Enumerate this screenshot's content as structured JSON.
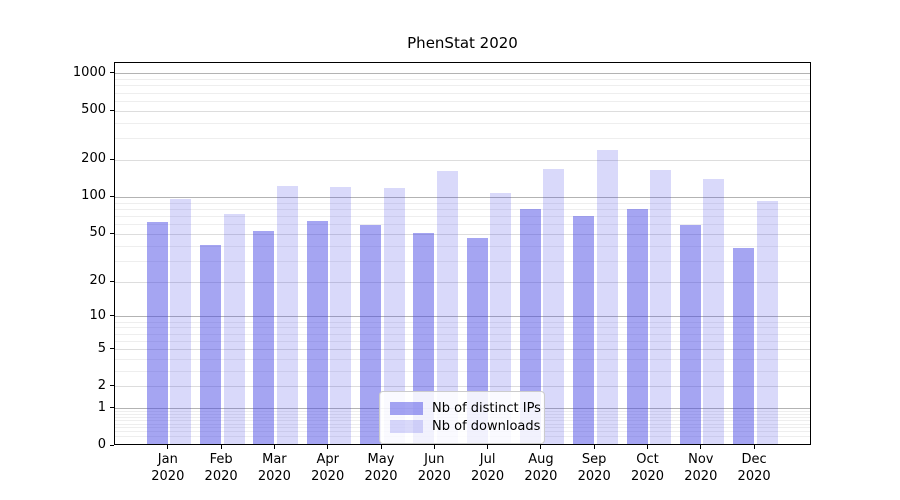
{
  "title": "PhenStat 2020",
  "legend": {
    "items": [
      {
        "label": "Nb of distinct IPs",
        "color": "rgba(64,64,228,0.47)"
      },
      {
        "label": "Nb of downloads",
        "color": "rgba(64,64,228,0.20)"
      }
    ]
  },
  "colors": {
    "bar_distinct_ips": "rgba(64,64,228,0.47)",
    "bar_downloads": "rgba(64,64,228,0.20)",
    "grid_major": "#b3b3b3",
    "grid_mid": "#dddddd",
    "grid_minor": "#eeeeee",
    "spine": "#000000"
  },
  "chart_data": {
    "type": "bar",
    "title": "PhenStat 2020",
    "categories": [
      "Jan 2020",
      "Feb 2020",
      "Mar 2020",
      "Apr 2020",
      "May 2020",
      "Jun 2020",
      "Jul 2020",
      "Aug 2020",
      "Sep 2020",
      "Oct 2020",
      "Nov 2020",
      "Dec 2020"
    ],
    "series": [
      {
        "name": "Nb of distinct IPs",
        "values": [
          61,
          39,
          51,
          62,
          57,
          49,
          45,
          78,
          68,
          77,
          57,
          37
        ]
      },
      {
        "name": "Nb of downloads",
        "values": [
          94,
          70,
          120,
          117,
          116,
          158,
          105,
          163,
          235,
          160,
          135,
          91
        ]
      }
    ],
    "xlabel": "",
    "ylabel": "",
    "yscale": "symlog (y proportional to log10(1+v))",
    "yticks": [
      0,
      1,
      2,
      5,
      10,
      20,
      50,
      100,
      200,
      500,
      1000
    ],
    "ytick_mid_levels": [
      2,
      5,
      20,
      50,
      200,
      500
    ],
    "ytick_major_levels": [
      1,
      10,
      100,
      1000
    ],
    "yminor_gridlines": [
      0.2,
      0.3,
      0.4,
      0.5,
      0.6,
      0.7,
      0.8,
      0.9,
      3,
      4,
      6,
      7,
      8,
      9,
      30,
      40,
      60,
      70,
      80,
      90,
      300,
      400,
      600,
      700,
      800,
      900
    ],
    "ylim": [
      0,
      1210
    ],
    "grid": true,
    "legend_position": "lower-center-inside"
  }
}
